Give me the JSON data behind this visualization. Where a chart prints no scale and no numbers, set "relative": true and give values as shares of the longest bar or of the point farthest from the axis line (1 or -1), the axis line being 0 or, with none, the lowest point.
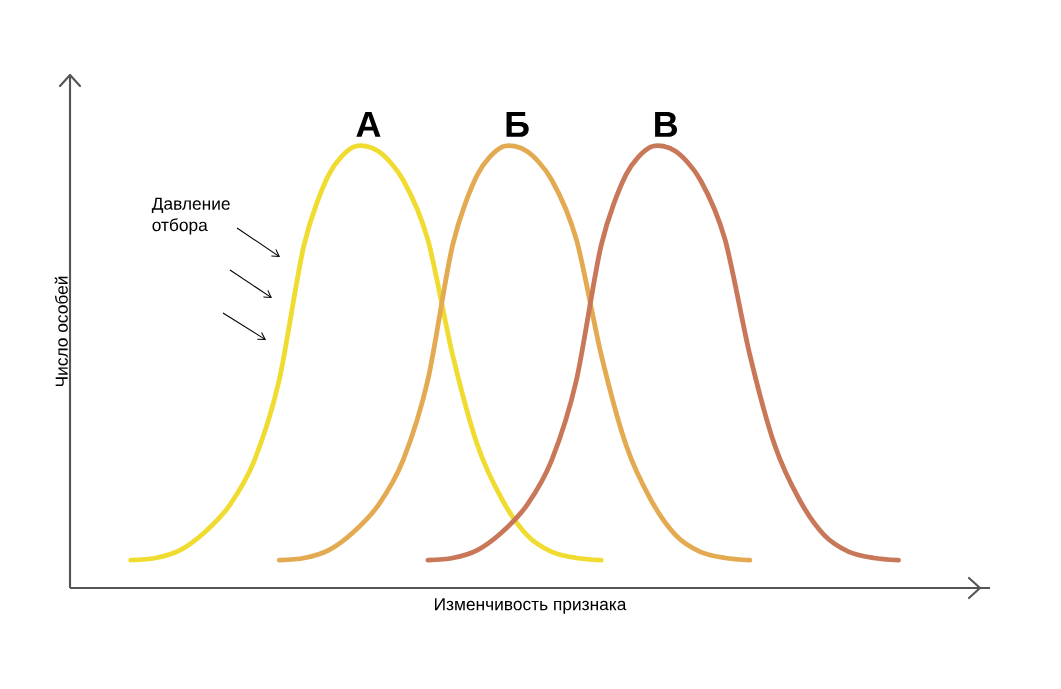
{
  "chart_data": {
    "type": "line",
    "relative": true,
    "xlabel": "Изменчивость признака",
    "ylabel": "Число особей",
    "annotations": [
      "Давление отбора"
    ],
    "categories": [
      null,
      null,
      null,
      null,
      null,
      null,
      null,
      null,
      null,
      null,
      null,
      null,
      null,
      null,
      null,
      null,
      null,
      null,
      null,
      null,
      null,
      null,
      null,
      null,
      null,
      null,
      null,
      null,
      null,
      null,
      null,
      null
    ],
    "series": [
      {
        "name": "А",
        "color": "#f0dc30",
        "values": [
          0.063,
          0.068,
          0.086,
          0.127,
          0.188,
          0.29,
          0.472,
          0.778,
          0.937,
          1,
          0.99,
          0.925,
          0.789,
          0.528,
          0.324,
          0.2,
          0.12,
          0.082,
          0.068,
          0.063,
          null,
          null,
          null,
          null,
          null,
          null,
          null,
          null,
          null,
          null,
          null,
          null
        ]
      },
      {
        "name": "Б",
        "color": "#e3aa52",
        "values": [
          null,
          null,
          null,
          null,
          null,
          null,
          0.063,
          0.068,
          0.086,
          0.127,
          0.188,
          0.29,
          0.472,
          0.778,
          0.937,
          1,
          0.99,
          0.925,
          0.789,
          0.528,
          0.324,
          0.2,
          0.12,
          0.082,
          0.068,
          0.063,
          null,
          null,
          null,
          null,
          null,
          null
        ]
      },
      {
        "name": "В",
        "color": "#c87858",
        "values": [
          null,
          null,
          null,
          null,
          null,
          null,
          null,
          null,
          null,
          null,
          null,
          null,
          0.063,
          0.068,
          0.086,
          0.127,
          0.188,
          0.29,
          0.472,
          0.778,
          0.937,
          1,
          0.99,
          0.925,
          0.789,
          0.528,
          0.324,
          0.2,
          0.12,
          0.082,
          0.068,
          0.063
        ]
      }
    ]
  }
}
